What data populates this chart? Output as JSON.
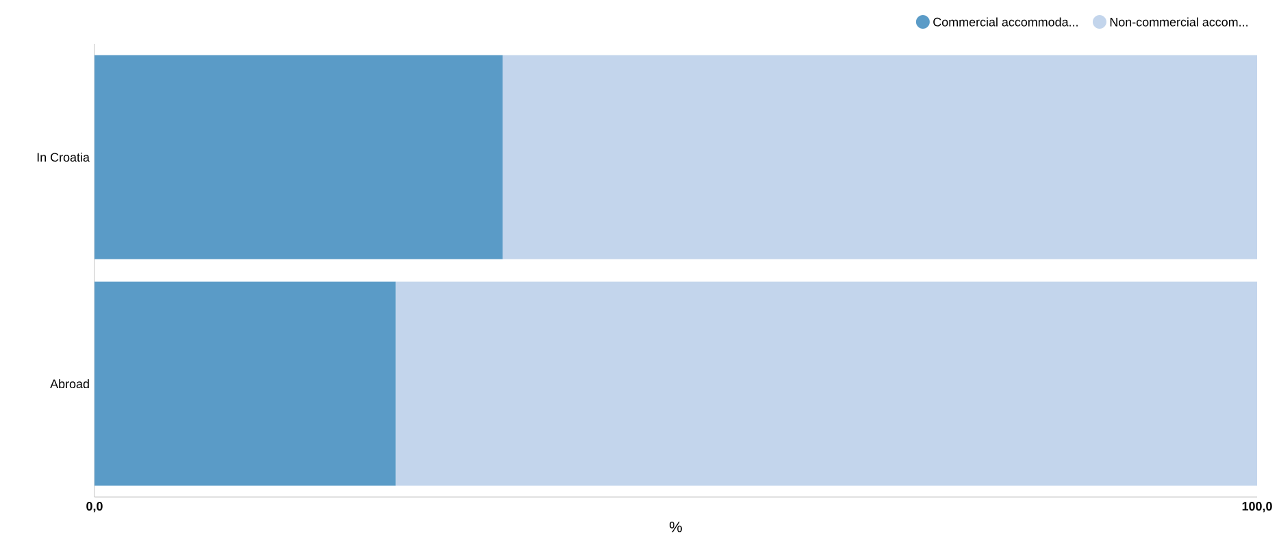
{
  "chart_data": {
    "type": "bar",
    "orientation": "horizontal",
    "stacked": true,
    "categories": [
      "In Croatia",
      "Abroad"
    ],
    "series": [
      {
        "name": "Commercial accommoda...",
        "color": "#5a9bc7",
        "values": [
          35.1,
          25.9
        ]
      },
      {
        "name": "Non-commercial accom...",
        "color": "#c3d5ec",
        "values": [
          64.9,
          74.1
        ]
      }
    ],
    "xlim": [
      0,
      100
    ],
    "xticks": [
      {
        "value": 0,
        "label": "0,0"
      },
      {
        "value": 100,
        "label": "100,0"
      }
    ],
    "xlabel": "%",
    "legend": "top right",
    "marker": "circle",
    "grid": false
  }
}
